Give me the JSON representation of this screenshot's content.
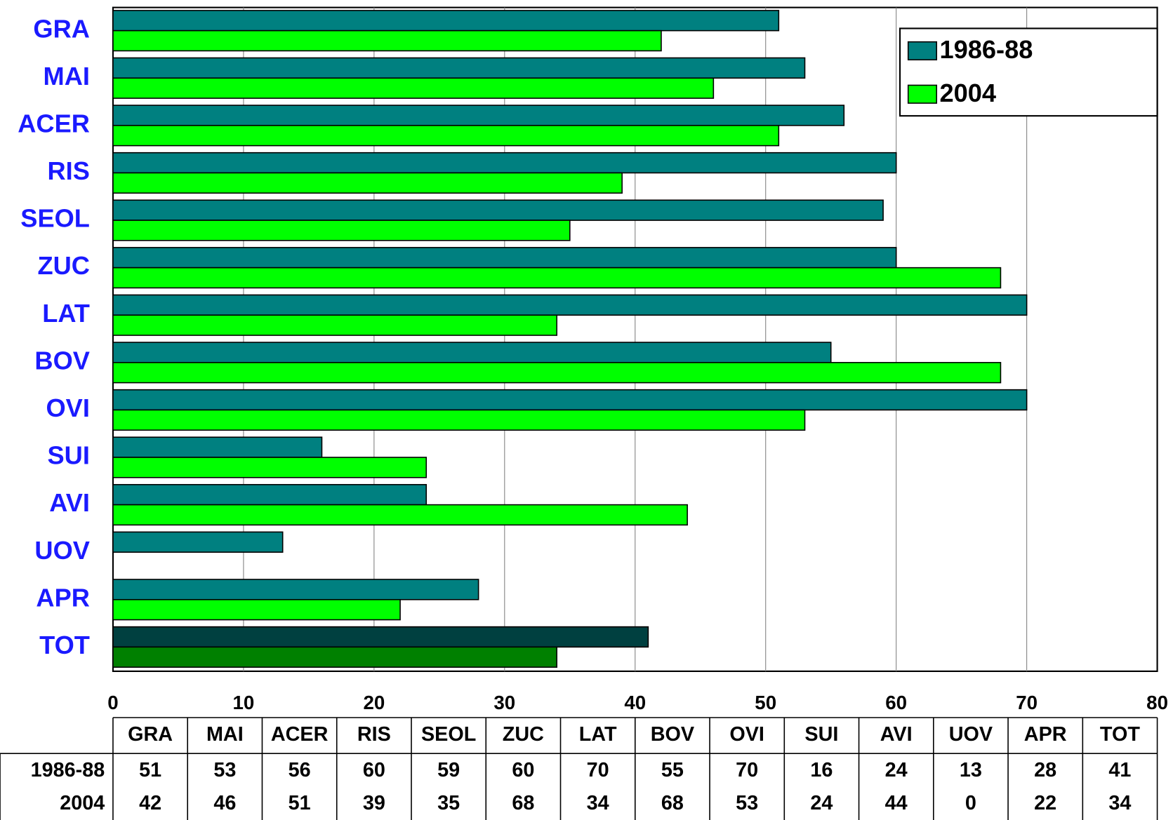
{
  "chart_data": {
    "type": "bar",
    "orientation": "horizontal",
    "categories": [
      "GRA",
      "MAI",
      "ACER",
      "RIS",
      "SEOL",
      "ZUC",
      "LAT",
      "BOV",
      "OVI",
      "SUI",
      "AVI",
      "UOV",
      "APR",
      "TOT"
    ],
    "series": [
      {
        "name": "1986-88",
        "color": "#008080",
        "values": [
          51,
          53,
          56,
          60,
          59,
          60,
          70,
          55,
          70,
          16,
          24,
          13,
          28,
          41
        ],
        "colors": [
          "#008080",
          "#008080",
          "#008080",
          "#008080",
          "#008080",
          "#008080",
          "#008080",
          "#008080",
          "#008080",
          "#008080",
          "#008080",
          "#008080",
          "#008080",
          "#004040"
        ]
      },
      {
        "name": "2004",
        "color": "#00ff00",
        "values": [
          42,
          46,
          51,
          39,
          35,
          68,
          34,
          68,
          53,
          24,
          44,
          0,
          22,
          34
        ],
        "colors": [
          "#00ff00",
          "#00ff00",
          "#00ff00",
          "#00ff00",
          "#00ff00",
          "#00ff00",
          "#00ff00",
          "#00ff00",
          "#00ff00",
          "#00ff00",
          "#00ff00",
          "#00ff00",
          "#00ff00",
          "#008000"
        ]
      }
    ],
    "xlim": [
      0,
      80
    ],
    "xticks": [
      0,
      10,
      20,
      30,
      40,
      50,
      60,
      70,
      80
    ],
    "grid": true,
    "legend": "top-right",
    "data_table": true
  }
}
